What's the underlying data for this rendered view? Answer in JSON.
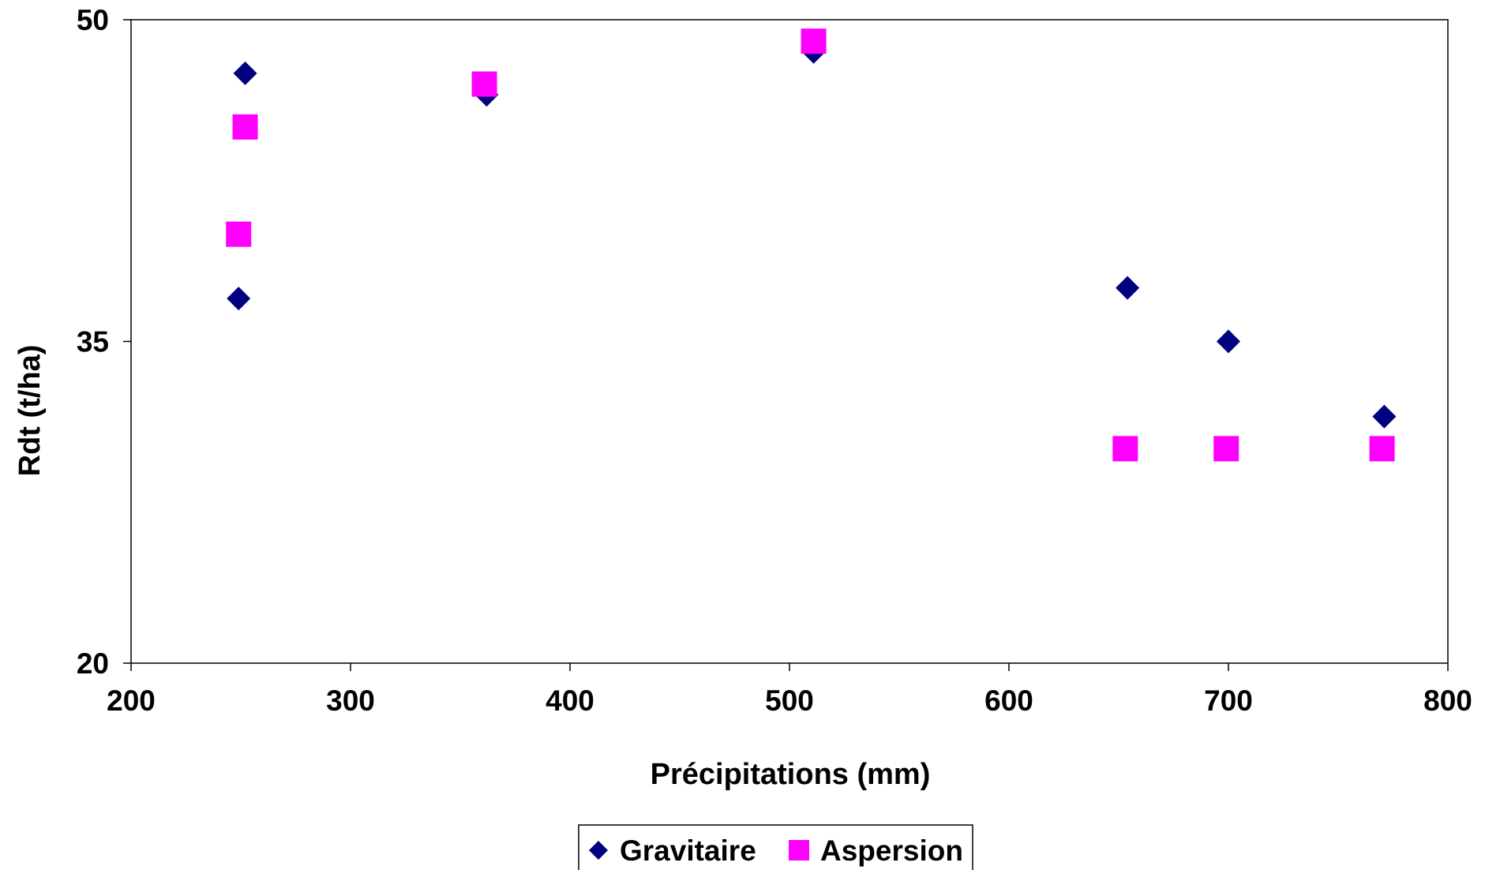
{
  "chart_data": {
    "type": "scatter",
    "title": "",
    "xlabel": "Précipitations (mm)",
    "ylabel": "Rdt (t/ha)",
    "xlim": [
      200,
      800
    ],
    "ylim": [
      20,
      50
    ],
    "x_ticks": [
      "200",
      "300",
      "400",
      "500",
      "600",
      "700",
      "800"
    ],
    "y_ticks": [
      "20",
      "35",
      "50"
    ],
    "grid": false,
    "legend_position": "bottom-center",
    "series": [
      {
        "name": "Gravitaire",
        "marker": "diamond",
        "color": "#000080",
        "points": [
          [
            252,
            47.5
          ],
          [
            249,
            37.0
          ],
          [
            362,
            46.5
          ],
          [
            511,
            48.5
          ],
          [
            654,
            37.5
          ],
          [
            700,
            35.0
          ],
          [
            771,
            31.5
          ]
        ]
      },
      {
        "name": "Aspersion",
        "marker": "square",
        "color": "#FF00FF",
        "points": [
          [
            252,
            45.0
          ],
          [
            249,
            40.0
          ],
          [
            361,
            47.0
          ],
          [
            511,
            49.0
          ],
          [
            653,
            30.0
          ],
          [
            699,
            30.0
          ],
          [
            770,
            30.0
          ]
        ]
      }
    ]
  }
}
